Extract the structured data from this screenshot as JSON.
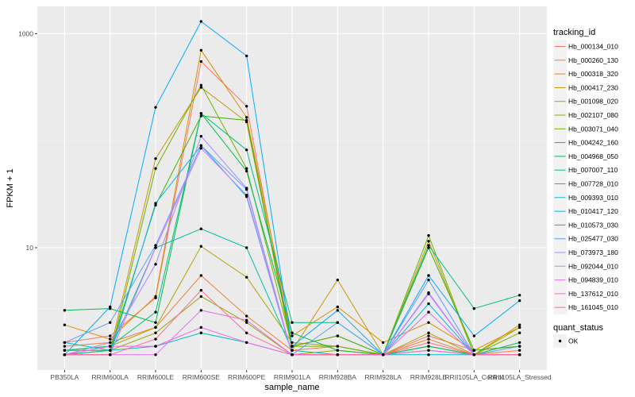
{
  "chart_data": {
    "type": "line",
    "xlabel": "sample_name",
    "ylabel": "FPKM + 1",
    "y_scale": "log10",
    "ylim": [
      0.72,
      1800
    ],
    "yticks": [
      10,
      1000
    ],
    "ytick_labels": [
      "10",
      "1000"
    ],
    "categories": [
      "PB350LA",
      "RRIM600LA",
      "RRIM600LE",
      "RRIM600SE",
      "RRIM600PE",
      "RRIM901LA",
      "RRIM928BA",
      "RRIM928LA",
      "RRIM928LE",
      "RRII105LA_Control",
      "RRII105LA_Stressed"
    ],
    "legend_title": "tracking_id",
    "shape_legend_title": "quant_status",
    "shape_legend_label": "OK",
    "series": [
      {
        "name": "Hb_000134_010",
        "color": "#F8766D",
        "values": [
          1.3,
          1.5,
          3.4,
          550,
          210,
          1.2,
          1.5,
          1.0,
          1.5,
          1.1,
          1.2
        ]
      },
      {
        "name": "Hb_000260_130",
        "color": "#EC8239",
        "values": [
          1.2,
          1.3,
          1.8,
          5.5,
          2.3,
          1.1,
          1.2,
          1.0,
          1.4,
          1.0,
          1.1
        ]
      },
      {
        "name": "Hb_000318_320",
        "color": "#DB8E00",
        "values": [
          1.9,
          1.4,
          3.5,
          700,
          165,
          1.5,
          2.8,
          1.3,
          2.0,
          1.1,
          1.8
        ]
      },
      {
        "name": "Hb_000417_230",
        "color": "#C79800",
        "values": [
          1.0,
          1.1,
          68,
          315,
          150,
          1.1,
          5.0,
          1.0,
          11.5,
          1.0,
          1.9
        ]
      },
      {
        "name": "Hb_001098_020",
        "color": "#AFA100",
        "values": [
          1.1,
          1.2,
          1.8,
          10.3,
          5.3,
          1.3,
          1.2,
          1.0,
          1.6,
          1.0,
          1.8
        ]
      },
      {
        "name": "Hb_002107_080",
        "color": "#96A900",
        "values": [
          1.0,
          1.1,
          1.6,
          3.5,
          2.0,
          1.0,
          1.1,
          1.0,
          1.2,
          1.0,
          1.0
        ]
      },
      {
        "name": "Hb_003071_040",
        "color": "#72B000",
        "values": [
          1.0,
          1.0,
          55,
          330,
          55,
          1.2,
          1.2,
          1.0,
          13.0,
          1.0,
          1.6
        ]
      },
      {
        "name": "Hb_004242_160",
        "color": "#39B600",
        "values": [
          1.1,
          1.1,
          25,
          170,
          155,
          1.2,
          1.5,
          1.0,
          10.0,
          1.1,
          1.2
        ]
      },
      {
        "name": "Hb_004968_050",
        "color": "#00BB4E",
        "values": [
          2.6,
          2.7,
          2.0,
          180,
          52,
          1.6,
          1.1,
          1.0,
          1.2,
          1.0,
          1.3
        ]
      },
      {
        "name": "Hb_007007_110",
        "color": "#00BF7D",
        "values": [
          1.1,
          1.2,
          2.5,
          180,
          82,
          2.0,
          2.0,
          1.0,
          10.5,
          2.7,
          3.6
        ]
      },
      {
        "name": "Hb_007728_010",
        "color": "#00C1A3",
        "values": [
          1.0,
          1.1,
          10.0,
          15.0,
          10.0,
          1.1,
          1.0,
          1.0,
          1.1,
          1.0,
          1.0
        ]
      },
      {
        "name": "Hb_009393_010",
        "color": "#00BFC4",
        "values": [
          1.3,
          1.1,
          1.2,
          1.6,
          1.3,
          1.0,
          1.0,
          1.0,
          1.0,
          1.0,
          1.0
        ]
      },
      {
        "name": "Hb_010417_120",
        "color": "#00B8E5",
        "values": [
          1.0,
          1.0,
          26,
          90,
          30,
          1.0,
          1.0,
          1.0,
          3.0,
          1.0,
          1.0
        ]
      },
      {
        "name": "Hb_010573_030",
        "color": "#00ABFD",
        "values": [
          1.0,
          2.8,
          205,
          1300,
          620,
          1.2,
          2.6,
          1.0,
          5.5,
          1.5,
          3.2
        ]
      },
      {
        "name": "Hb_025477_030",
        "color": "#619CFF",
        "values": [
          1.3,
          2.0,
          10.5,
          90,
          35,
          1.0,
          2.0,
          1.0,
          5.0,
          1.0,
          1.2
        ]
      },
      {
        "name": "Hb_073973_180",
        "color": "#9F8CFF",
        "values": [
          1.0,
          1.3,
          7.0,
          110,
          36,
          1.0,
          1.0,
          1.0,
          3.8,
          1.0,
          1.0
        ]
      },
      {
        "name": "Hb_092044_010",
        "color": "#C77CFF",
        "values": [
          1.0,
          1.0,
          10.0,
          85,
          31,
          1.0,
          1.0,
          1.0,
          3.7,
          1.0,
          1.0
        ]
      },
      {
        "name": "Hb_094839_010",
        "color": "#E56CF0",
        "values": [
          1.0,
          1.0,
          1.0,
          2.6,
          2.1,
          1.0,
          1.0,
          1.0,
          2.5,
          1.0,
          1.0
        ]
      },
      {
        "name": "Hb_137612_010",
        "color": "#F564E3",
        "values": [
          1.0,
          1.2,
          1.2,
          1.8,
          1.3,
          1.0,
          1.0,
          1.0,
          1.1,
          1.0,
          1.0
        ]
      },
      {
        "name": "Hb_161045_010",
        "color": "#FF6C91",
        "values": [
          1.0,
          1.0,
          1.4,
          4.0,
          1.6,
          1.0,
          1.0,
          1.0,
          1.3,
          1.0,
          1.0
        ]
      }
    ]
  }
}
